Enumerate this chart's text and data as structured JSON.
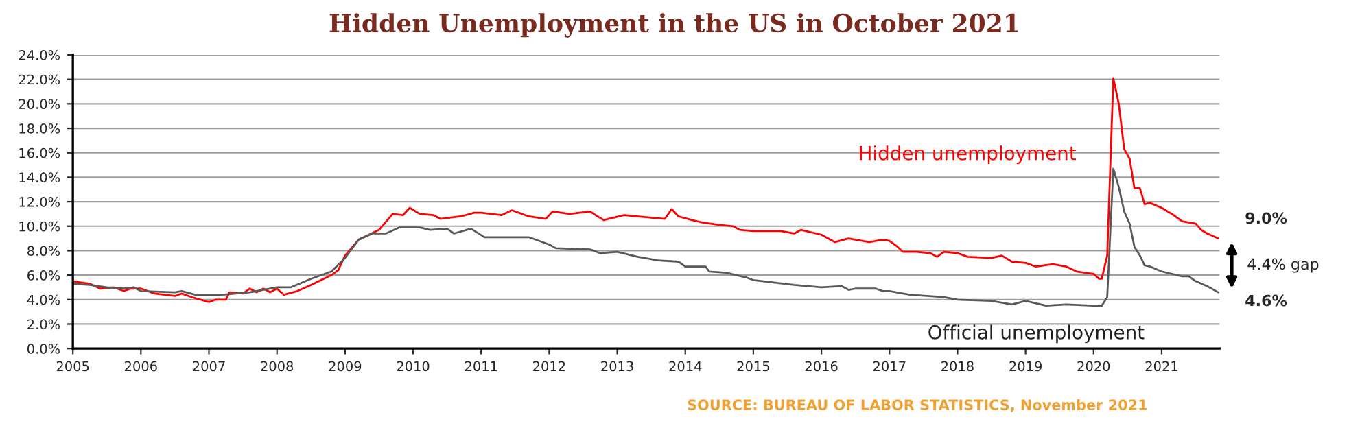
{
  "chart_data": {
    "type": "line",
    "title": "Hidden Unemployment in the US in October 2021",
    "xlim": [
      2005,
      2021.85
    ],
    "xticks": [
      2005,
      2006,
      2007,
      2008,
      2009,
      2010,
      2011,
      2012,
      2013,
      2014,
      2015,
      2016,
      2017,
      2018,
      2019,
      2020,
      2021
    ],
    "ylim": [
      0,
      24
    ],
    "yticks": [
      {
        "value": 0,
        "label": "0.0%"
      },
      {
        "value": 2,
        "label": "2.0%"
      },
      {
        "value": 4,
        "label": "4.0%"
      },
      {
        "value": 6,
        "label": "6.0%"
      },
      {
        "value": 8,
        "label": "8.0%"
      },
      {
        "value": 10,
        "label": "10.0%"
      },
      {
        "value": 12,
        "label": "12.0%"
      },
      {
        "value": 14,
        "label": "14.0%"
      },
      {
        "value": 16,
        "label": "16.0%"
      },
      {
        "value": 18,
        "label": "18.0%"
      },
      {
        "value": 20,
        "label": "20.0%"
      },
      {
        "value": 22,
        "label": "22.0%"
      },
      {
        "value": 24,
        "label": "24.0%"
      }
    ],
    "grid": "y",
    "legend": false,
    "marker": "none",
    "line_style": "solid",
    "series": [
      {
        "name": "Hidden unemployment",
        "color": "#ff0000",
        "x": [
          2005.0,
          2005.25,
          2005.4,
          2005.6,
          2005.75,
          2005.85,
          2006.0,
          2006.2,
          2006.5,
          2006.6,
          2006.75,
          2007.0,
          2007.1,
          2007.25,
          2007.3,
          2007.5,
          2007.6,
          2007.7,
          2007.8,
          2007.9,
          2008.0,
          2008.1,
          2008.3,
          2008.5,
          2008.8,
          2008.9,
          2009.0,
          2009.2,
          2009.5,
          2009.7,
          2009.85,
          2009.95,
          2010.1,
          2010.3,
          2010.4,
          2010.7,
          2010.9,
          2011.0,
          2011.3,
          2011.45,
          2011.7,
          2011.95,
          2012.05,
          2012.3,
          2012.6,
          2012.8,
          2013.1,
          2013.5,
          2013.7,
          2013.8,
          2013.9,
          2014.1,
          2014.25,
          2014.5,
          2014.7,
          2014.8,
          2015.0,
          2015.4,
          2015.6,
          2015.7,
          2016.0,
          2016.2,
          2016.4,
          2016.7,
          2016.9,
          2017.0,
          2017.1,
          2017.2,
          2017.4,
          2017.6,
          2017.7,
          2017.8,
          2018.0,
          2018.15,
          2018.5,
          2018.65,
          2018.8,
          2019.0,
          2019.15,
          2019.4,
          2019.6,
          2019.75,
          2020.0,
          2020.08,
          2020.12,
          2020.2,
          2020.29,
          2020.37,
          2020.45,
          2020.53,
          2020.6,
          2020.68,
          2020.75,
          2020.83,
          2021.0,
          2021.15,
          2021.3,
          2021.5,
          2021.58,
          2021.67,
          2021.83
        ],
        "values": [
          5.5,
          5.3,
          4.9,
          5.0,
          4.7,
          4.9,
          4.9,
          4.5,
          4.3,
          4.5,
          4.2,
          3.8,
          4.0,
          4.0,
          4.6,
          4.5,
          4.9,
          4.6,
          4.9,
          4.6,
          4.9,
          4.4,
          4.7,
          5.2,
          6.0,
          6.4,
          7.6,
          8.9,
          9.7,
          11.0,
          10.9,
          11.5,
          11.0,
          10.9,
          10.6,
          10.8,
          11.1,
          11.1,
          10.9,
          11.3,
          10.8,
          10.6,
          11.2,
          11.0,
          11.2,
          10.5,
          10.9,
          10.7,
          10.6,
          11.4,
          10.8,
          10.5,
          10.3,
          10.1,
          10.0,
          9.7,
          9.6,
          9.6,
          9.4,
          9.7,
          9.3,
          8.7,
          9.0,
          8.7,
          8.9,
          8.8,
          8.4,
          7.9,
          7.9,
          7.8,
          7.5,
          7.9,
          7.8,
          7.5,
          7.4,
          7.6,
          7.1,
          7.0,
          6.7,
          6.9,
          6.7,
          6.3,
          6.1,
          5.7,
          5.7,
          7.6,
          22.1,
          20.0,
          16.3,
          15.5,
          13.1,
          13.1,
          11.8,
          11.9,
          11.5,
          11.0,
          10.4,
          10.2,
          9.7,
          9.4,
          9.0
        ]
      },
      {
        "name": "Official unemployment",
        "color": "#595959",
        "x": [
          2005.0,
          2005.25,
          2005.5,
          2005.75,
          2005.9,
          2006.0,
          2006.5,
          2006.6,
          2006.8,
          2007.2,
          2007.6,
          2008.0,
          2008.2,
          2008.5,
          2008.8,
          2009.0,
          2009.2,
          2009.4,
          2009.6,
          2009.8,
          2010.1,
          2010.25,
          2010.5,
          2010.6,
          2010.85,
          2011.05,
          2011.7,
          2012.0,
          2012.1,
          2012.6,
          2012.75,
          2013.0,
          2013.3,
          2013.6,
          2013.9,
          2014.0,
          2014.3,
          2014.35,
          2014.6,
          2014.9,
          2015.0,
          2015.3,
          2015.6,
          2016.0,
          2016.3,
          2016.4,
          2016.5,
          2016.8,
          2016.9,
          2017.0,
          2017.3,
          2017.8,
          2018.0,
          2018.5,
          2018.8,
          2019.0,
          2019.3,
          2019.6,
          2020.0,
          2020.12,
          2020.2,
          2020.29,
          2020.37,
          2020.45,
          2020.53,
          2020.6,
          2020.68,
          2020.75,
          2020.83,
          2021.0,
          2021.3,
          2021.4,
          2021.5,
          2021.67,
          2021.83
        ],
        "values": [
          5.3,
          5.2,
          5.0,
          4.9,
          5.0,
          4.7,
          4.6,
          4.7,
          4.4,
          4.4,
          4.6,
          5.0,
          5.0,
          5.7,
          6.3,
          7.4,
          8.9,
          9.4,
          9.4,
          9.9,
          9.9,
          9.7,
          9.8,
          9.4,
          9.8,
          9.1,
          9.1,
          8.5,
          8.2,
          8.1,
          7.8,
          7.9,
          7.5,
          7.2,
          7.1,
          6.7,
          6.7,
          6.3,
          6.2,
          5.8,
          5.6,
          5.4,
          5.2,
          5.0,
          5.1,
          4.8,
          4.9,
          4.9,
          4.7,
          4.7,
          4.4,
          4.2,
          4.0,
          3.9,
          3.6,
          3.9,
          3.5,
          3.6,
          3.5,
          3.5,
          4.2,
          14.7,
          13.2,
          11.2,
          10.2,
          8.3,
          7.6,
          6.8,
          6.7,
          6.3,
          5.9,
          5.9,
          5.5,
          5.1,
          4.6
        ]
      }
    ],
    "annotations": [
      "9.0%",
      "4.6%",
      "4.4% gap",
      "SOURCE: BUREAU OF LABOR STATISTICS, November 2021"
    ]
  }
}
